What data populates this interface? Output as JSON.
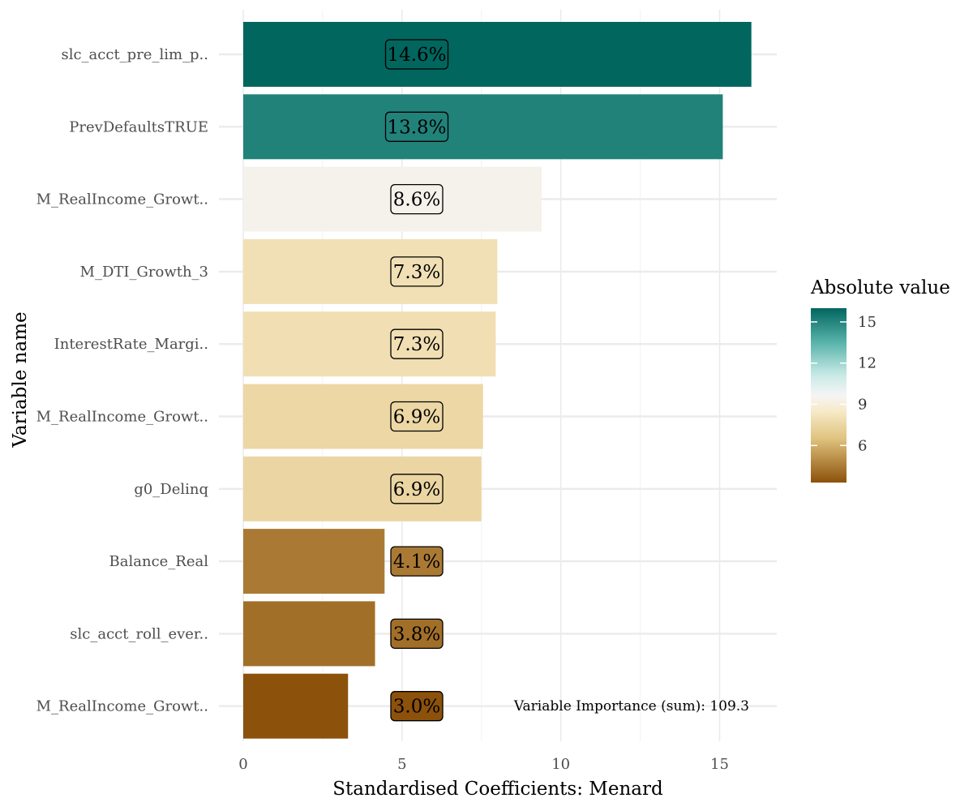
{
  "chart_data": {
    "type": "bar",
    "orientation": "horizontal",
    "xlabel": "Standardised Coefficients: Menard",
    "ylabel": "Variable name",
    "xlim": [
      0,
      16.8
    ],
    "x_ticks": [
      0,
      5,
      10,
      15
    ],
    "grid": true,
    "categories": [
      "slc_acct_pre_lim_p..",
      "PrevDefaultsTRUE",
      "M_RealIncome_Growt..",
      "M_DTI_Growth_3",
      "InterestRate_Margi..",
      "M_RealIncome_Growt..",
      "g0_Delinq",
      "Balance_Real",
      "slc_acct_roll_ever..",
      "M_RealIncome_Growt.."
    ],
    "values": [
      16.0,
      15.1,
      9.4,
      8.0,
      7.95,
      7.55,
      7.5,
      4.45,
      4.15,
      3.3
    ],
    "bar_labels": [
      "14.6%",
      "13.8%",
      "8.6%",
      "7.3%",
      "7.3%",
      "6.9%",
      "6.9%",
      "4.1%",
      "3.8%",
      "3.0%"
    ],
    "annotation": "Variable Importance (sum): 109.3",
    "legend": {
      "title": "Absolute value",
      "type": "continuous",
      "range": [
        3.3,
        16.0
      ],
      "ticks": [
        "15",
        "12",
        "9",
        "6"
      ],
      "tick_values": [
        15,
        12,
        9,
        6
      ],
      "palette": "BrBG",
      "low_color": "#8c510a",
      "mid_color": "#f5f5f5",
      "high_color": "#01665e",
      "placement": "right"
    }
  }
}
